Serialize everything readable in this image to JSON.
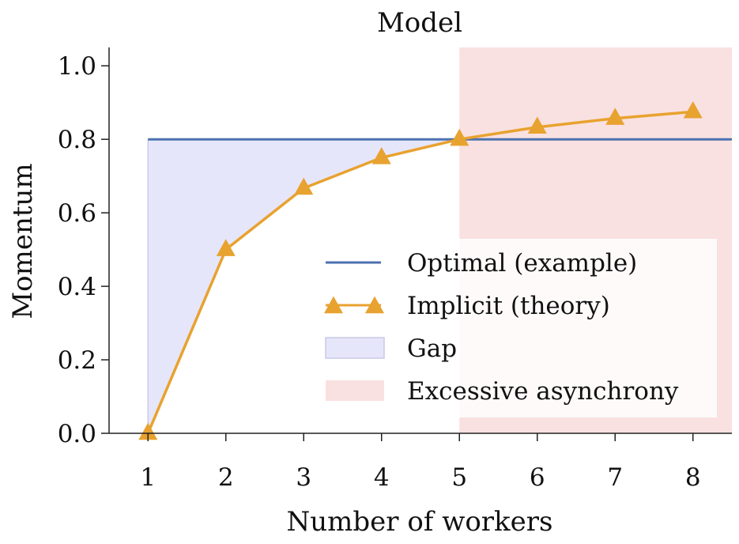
{
  "chart_data": {
    "type": "line",
    "title": "Model",
    "xlabel": "Number of workers",
    "ylabel": "Momentum",
    "xlim": [
      0.5,
      8.5
    ],
    "ylim": [
      0.0,
      1.05
    ],
    "x_ticks": [
      "1",
      "2",
      "3",
      "4",
      "5",
      "6",
      "7",
      "8"
    ],
    "y_ticks": [
      "0.0",
      "0.2",
      "0.4",
      "0.6",
      "0.8",
      "1.0"
    ],
    "grid": false,
    "legend_position": "lower-right",
    "series": [
      {
        "name": "Optimal (example)",
        "kind": "hline",
        "y": 0.8,
        "color": "#4c72b0"
      },
      {
        "name": "Implicit (theory)",
        "kind": "line-markers",
        "marker": "triangle",
        "color": "#e8a22f",
        "x": [
          1,
          2,
          3,
          4,
          5,
          6,
          7,
          8
        ],
        "y": [
          0.0,
          0.5,
          0.667,
          0.75,
          0.8,
          0.833,
          0.857,
          0.875
        ]
      },
      {
        "name": "Gap",
        "kind": "area-between",
        "x_range": [
          1,
          5
        ],
        "color": "#e6e6fb"
      },
      {
        "name": "Excessive asynchrony",
        "kind": "vspan",
        "x_range": [
          5,
          8.5
        ],
        "color": "#f9e1e1"
      }
    ]
  }
}
